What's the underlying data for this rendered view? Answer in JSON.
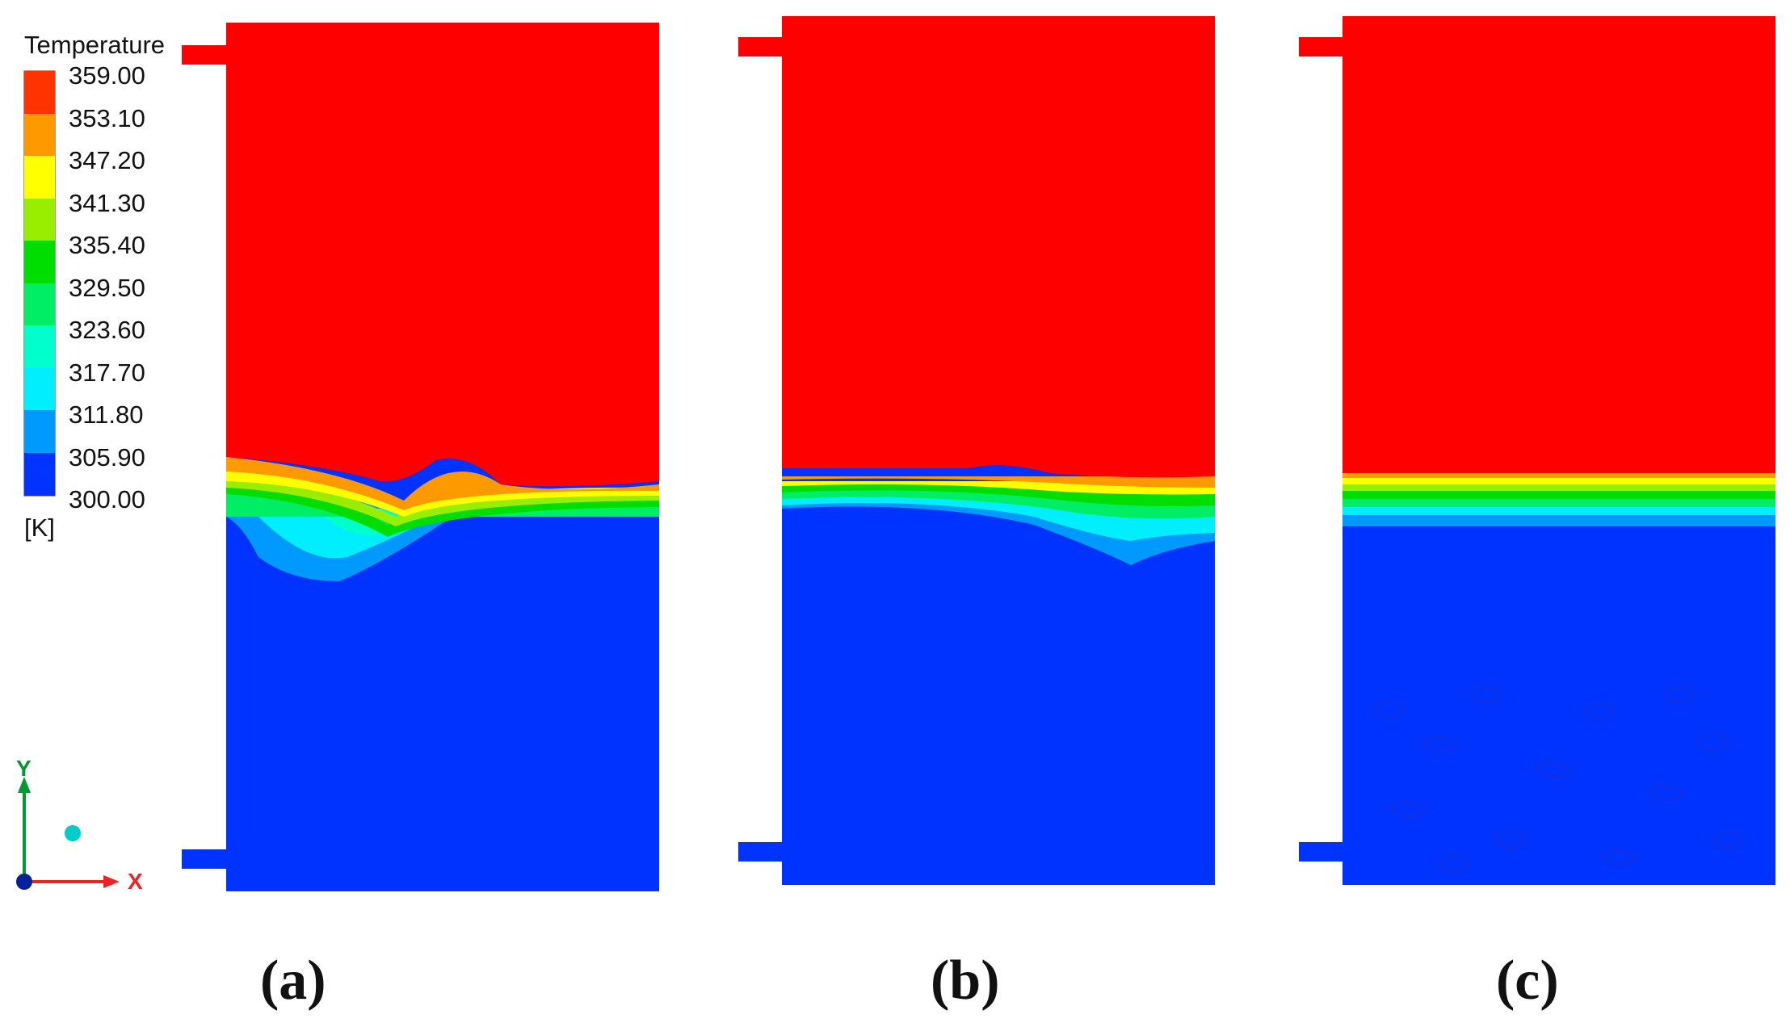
{
  "legend": {
    "title": "Temperature",
    "unit": "[K]",
    "ticks": [
      "359.00",
      "353.10",
      "347.20",
      "341.30",
      "335.40",
      "329.50",
      "323.60",
      "317.70",
      "311.80",
      "305.90",
      "300.00"
    ],
    "band_colors": [
      "#ff3300",
      "#ff9900",
      "#ffff00",
      "#99ee00",
      "#00dd00",
      "#00ee66",
      "#00ffcc",
      "#00eeff",
      "#0099ff",
      "#0033ff"
    ]
  },
  "axes": {
    "x_label": "X",
    "y_label": "Y"
  },
  "panels": [
    {
      "label": "(a)"
    },
    {
      "label": "(b)"
    },
    {
      "label": "(c)"
    }
  ],
  "colors": {
    "hot": "#ff0000",
    "cold": "#0033ff"
  }
}
